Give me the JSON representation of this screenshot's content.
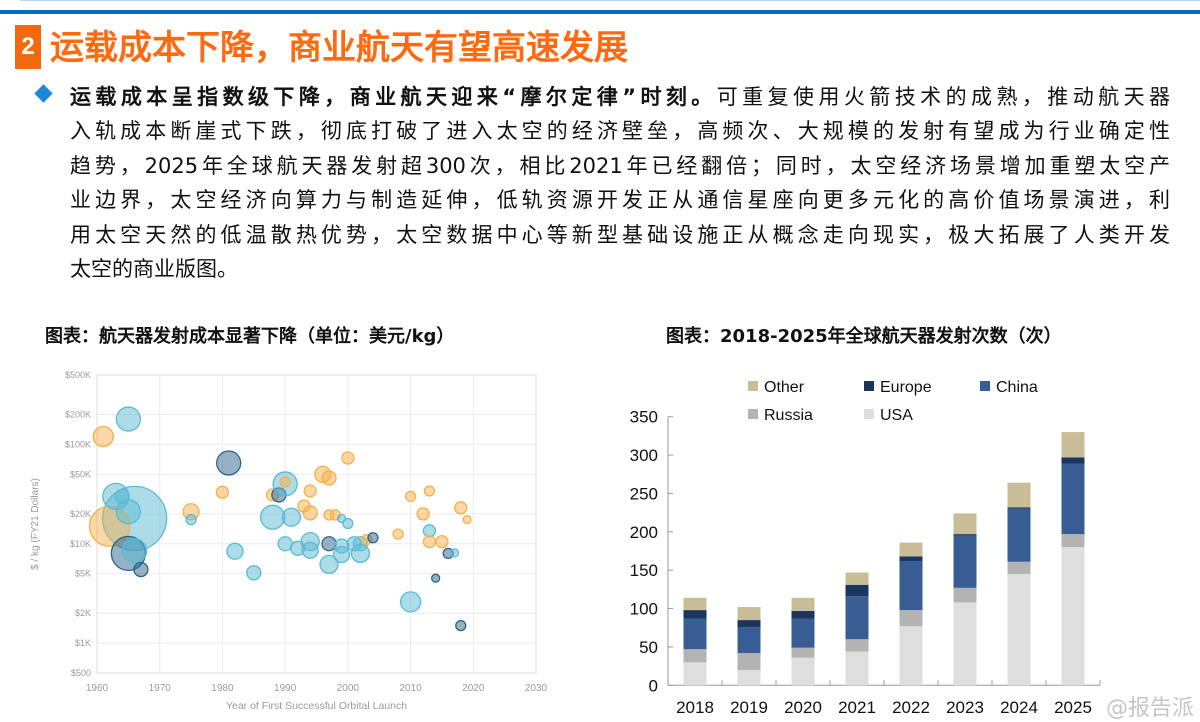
{
  "header": {
    "section_number": "2",
    "title": "运载成本下降，商业航天有望高速发展"
  },
  "paragraph": {
    "bold_lead": "运载成本呈指数级下降，商业航天迎来“摩尔定律”时刻。",
    "lines": [
      "可重复使用火箭技术的成熟，推动航天器",
      "入轨成本断崖式下跌，彻底打破了进入太空的经济壁垒，高频次、大规模的发射有望成为行业确定性",
      "趋势，2025年全球航天器发射超300次，相比2021年已经翻倍；同时，太空经济场景增加重塑太空产",
      "业边界，太空经济向算力与制造延伸，低轨资源开发正从通信星座向更多元化的高价值场景演进，利",
      "用太空天然的低温散热优势，太空数据中心等新型基础设施正从概念走向现实，极大拓展了人类开发",
      "太空的商业版图。"
    ]
  },
  "watermark": "@报告派",
  "chart_data": [
    {
      "type": "scatter",
      "title": "图表：航天器发射成本显著下降（单位：美元/kg）",
      "xlabel": "Year of First Successful Orbital Launch",
      "ylabel": "$ / kg (FY21 Dollars)",
      "xlim": [
        1960,
        2030
      ],
      "ylim": [
        500,
        500000
      ],
      "yscale": "log",
      "x_ticks": [
        "1960",
        "1970",
        "1980",
        "1990",
        "2000",
        "2010",
        "2020",
        "2030"
      ],
      "y_ticks": [
        {
          "v": 500,
          "label": "$500"
        },
        {
          "v": 1000,
          "label": "$1K"
        },
        {
          "v": 2000,
          "label": "$2K"
        },
        {
          "v": 5000,
          "label": "$5K"
        },
        {
          "v": 10000,
          "label": "$10K"
        },
        {
          "v": 20000,
          "label": "$20K"
        },
        {
          "v": 50000,
          "label": "$50K"
        },
        {
          "v": 100000,
          "label": "$100K"
        },
        {
          "v": 200000,
          "label": "$200K"
        },
        {
          "v": 500000,
          "label": "$500K"
        }
      ],
      "colors": {
        "orange": "#f5b04a",
        "light": "#5bb9d3",
        "dark": "#2b6488"
      },
      "points": [
        {
          "x": 1966,
          "y": 18000,
          "s": 32,
          "c": "light"
        },
        {
          "x": 1962,
          "y": 15000,
          "s": 20,
          "c": "orange"
        },
        {
          "x": 1965,
          "y": 180000,
          "s": 12,
          "c": "light"
        },
        {
          "x": 1961,
          "y": 120000,
          "s": 10,
          "c": "orange"
        },
        {
          "x": 1963,
          "y": 30000,
          "s": 13,
          "c": "light"
        },
        {
          "x": 1964,
          "y": 30000,
          "s": 7,
          "c": "light"
        },
        {
          "x": 1965,
          "y": 21000,
          "s": 12,
          "c": "light"
        },
        {
          "x": 1965,
          "y": 8000,
          "s": 17,
          "c": "dark"
        },
        {
          "x": 1966,
          "y": 8500,
          "s": 12,
          "c": "light"
        },
        {
          "x": 1967,
          "y": 5500,
          "s": 7,
          "c": "dark"
        },
        {
          "x": 1975,
          "y": 21000,
          "s": 8,
          "c": "orange"
        },
        {
          "x": 1975,
          "y": 17500,
          "s": 5,
          "c": "light"
        },
        {
          "x": 1980,
          "y": 33000,
          "s": 6,
          "c": "orange"
        },
        {
          "x": 1981,
          "y": 65000,
          "s": 12,
          "c": "dark"
        },
        {
          "x": 1982,
          "y": 8400,
          "s": 8,
          "c": "light"
        },
        {
          "x": 1985,
          "y": 5100,
          "s": 7,
          "c": "light"
        },
        {
          "x": 1988,
          "y": 31000,
          "s": 6,
          "c": "orange"
        },
        {
          "x": 1989,
          "y": 31000,
          "s": 7,
          "c": "dark"
        },
        {
          "x": 1990,
          "y": 40000,
          "s": 12,
          "c": "light"
        },
        {
          "x": 1990,
          "y": 42000,
          "s": 5,
          "c": "orange"
        },
        {
          "x": 1988,
          "y": 18500,
          "s": 12,
          "c": "light"
        },
        {
          "x": 1991,
          "y": 18500,
          "s": 9,
          "c": "light"
        },
        {
          "x": 1990,
          "y": 10000,
          "s": 7,
          "c": "light"
        },
        {
          "x": 1992,
          "y": 9000,
          "s": 7,
          "c": "light"
        },
        {
          "x": 1994,
          "y": 34000,
          "s": 6,
          "c": "orange"
        },
        {
          "x": 1993,
          "y": 24000,
          "s": 6,
          "c": "orange"
        },
        {
          "x": 1994,
          "y": 20500,
          "s": 7,
          "c": "orange"
        },
        {
          "x": 1994,
          "y": 10500,
          "s": 9,
          "c": "light"
        },
        {
          "x": 1994,
          "y": 8600,
          "s": 8,
          "c": "light"
        },
        {
          "x": 1996,
          "y": 50000,
          "s": 8,
          "c": "orange"
        },
        {
          "x": 1997,
          "y": 46000,
          "s": 7,
          "c": "orange"
        },
        {
          "x": 2000,
          "y": 73000,
          "s": 6,
          "c": "orange"
        },
        {
          "x": 1997,
          "y": 19500,
          "s": 5,
          "c": "orange"
        },
        {
          "x": 1998,
          "y": 19500,
          "s": 5,
          "c": "orange"
        },
        {
          "x": 1999,
          "y": 18000,
          "s": 4,
          "c": "light"
        },
        {
          "x": 2000,
          "y": 16000,
          "s": 5,
          "c": "light"
        },
        {
          "x": 1997,
          "y": 10000,
          "s": 7,
          "c": "dark"
        },
        {
          "x": 1997,
          "y": 6200,
          "s": 9,
          "c": "light"
        },
        {
          "x": 1999,
          "y": 9500,
          "s": 7,
          "c": "light"
        },
        {
          "x": 1999,
          "y": 7800,
          "s": 8,
          "c": "light"
        },
        {
          "x": 2001,
          "y": 10000,
          "s": 7,
          "c": "light"
        },
        {
          "x": 2002,
          "y": 10000,
          "s": 7,
          "c": "light"
        },
        {
          "x": 2002,
          "y": 8000,
          "s": 9,
          "c": "light"
        },
        {
          "x": 2003,
          "y": 11000,
          "s": 5,
          "c": "orange"
        },
        {
          "x": 2004,
          "y": 11500,
          "s": 5,
          "c": "dark"
        },
        {
          "x": 2008,
          "y": 12500,
          "s": 5,
          "c": "orange"
        },
        {
          "x": 2010,
          "y": 30000,
          "s": 5,
          "c": "orange"
        },
        {
          "x": 2010,
          "y": 2600,
          "s": 10,
          "c": "light"
        },
        {
          "x": 2012,
          "y": 20000,
          "s": 6,
          "c": "orange"
        },
        {
          "x": 2013,
          "y": 34000,
          "s": 5,
          "c": "orange"
        },
        {
          "x": 2013,
          "y": 13500,
          "s": 6,
          "c": "light"
        },
        {
          "x": 2013,
          "y": 10500,
          "s": 6,
          "c": "orange"
        },
        {
          "x": 2015,
          "y": 10500,
          "s": 6,
          "c": "orange"
        },
        {
          "x": 2014,
          "y": 4500,
          "s": 4,
          "c": "dark"
        },
        {
          "x": 2016,
          "y": 8000,
          "s": 5,
          "c": "dark"
        },
        {
          "x": 2017,
          "y": 8100,
          "s": 4,
          "c": "light"
        },
        {
          "x": 2018,
          "y": 23000,
          "s": 6,
          "c": "orange"
        },
        {
          "x": 2019,
          "y": 17500,
          "s": 4,
          "c": "orange"
        },
        {
          "x": 2018,
          "y": 1500,
          "s": 5,
          "c": "dark"
        }
      ]
    },
    {
      "type": "bar",
      "stacked": true,
      "title": "图表：2018-2025年全球航天器发射次数（次）",
      "categories": [
        "2018",
        "2019",
        "2020",
        "2021",
        "2022",
        "2023",
        "2024",
        "2025"
      ],
      "ylim": [
        0,
        350
      ],
      "y_ticks": [
        0,
        50,
        100,
        150,
        200,
        250,
        300,
        350
      ],
      "legend_position": "top",
      "legend": [
        "Other",
        "Europe",
        "China",
        "Russia",
        "USA"
      ],
      "series": [
        {
          "name": "USA",
          "color": "#dedede",
          "values": [
            30,
            20,
            36,
            44,
            77,
            108,
            145,
            180
          ]
        },
        {
          "name": "Russia",
          "color": "#b3b3b3",
          "values": [
            17,
            22,
            13,
            16,
            21,
            19,
            16,
            17
          ]
        },
        {
          "name": "China",
          "color": "#375d94",
          "values": [
            40,
            34,
            38,
            56,
            64,
            68,
            69,
            92
          ]
        },
        {
          "name": "Europe",
          "color": "#1b355e",
          "values": [
            11,
            9,
            10,
            15,
            6,
            2,
            2,
            8
          ]
        },
        {
          "name": "Other",
          "color": "#c8bd96",
          "values": [
            16,
            17,
            17,
            16,
            18,
            27,
            32,
            33
          ]
        }
      ]
    }
  ]
}
